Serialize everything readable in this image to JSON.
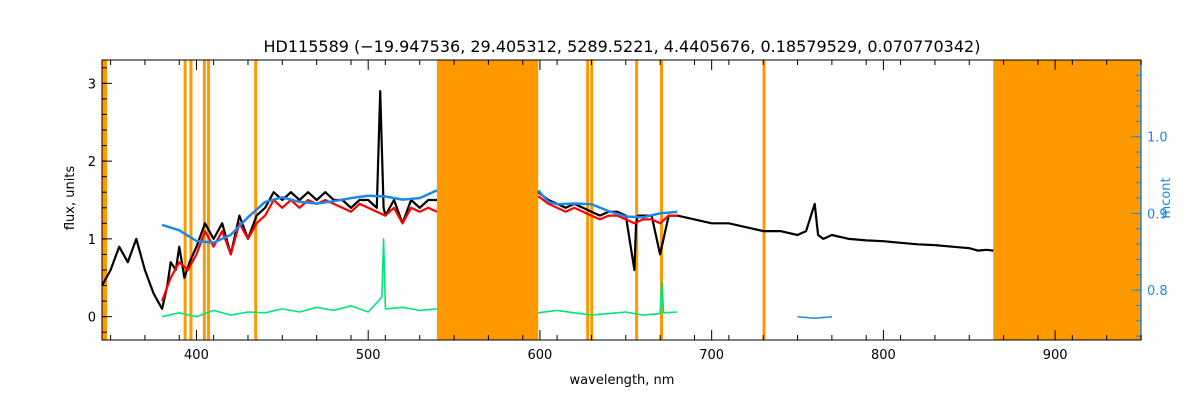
{
  "chart_data": {
    "type": "line",
    "title": "HD115589   (−19.947536, 29.405312, 5289.5221, 4.4405676, 0.18579529, 0.070770342)",
    "xlabel": "wavelength, nm",
    "ylabel": "flux, units",
    "y2label": "mcont",
    "xlim": [
      345,
      950
    ],
    "ylim": [
      -0.3,
      3.3
    ],
    "y2lim": [
      0.735,
      1.1
    ],
    "xticks": [
      400,
      500,
      600,
      700,
      800,
      900
    ],
    "yticks": [
      0,
      1,
      2,
      3
    ],
    "y2ticks": [
      0.8,
      0.9,
      1.0
    ],
    "y2ticklabels": [
      "0.8",
      "0.9",
      "1.0"
    ],
    "grid": false,
    "colors": {
      "observed": "#000000",
      "model": "#ff0000",
      "residual": "#00e676",
      "continuum": "#1e88e5",
      "mask": "#ff9900"
    },
    "masked_bands": [
      [
        345,
        348
      ],
      [
        540,
        599
      ],
      [
        864,
        950
      ]
    ],
    "masked_lines": [
      393.4,
      396.8,
      404.6,
      407.0,
      434.5,
      627.8,
      630.2,
      656.3,
      670.8,
      730.5
    ],
    "series": [
      {
        "key": "observed",
        "x": [
          345,
          350,
          355,
          360,
          365,
          370,
          375,
          380,
          383,
          385,
          388,
          390,
          393,
          396,
          400,
          405,
          410,
          415,
          420,
          425,
          430,
          435,
          440,
          445,
          450,
          455,
          460,
          465,
          470,
          475,
          480,
          485,
          490,
          495,
          500,
          505,
          507,
          509,
          510,
          515,
          520,
          525,
          530,
          535,
          540,
          599,
          605,
          610,
          615,
          620,
          625,
          630,
          635,
          640,
          645,
          650,
          655,
          656,
          657,
          660,
          665,
          670,
          675,
          680,
          690,
          700,
          710,
          720,
          730,
          740,
          750,
          755,
          760,
          762,
          765,
          770,
          780,
          790,
          800,
          810,
          820,
          830,
          840,
          850,
          855,
          860,
          864
        ],
        "y": [
          0.4,
          0.6,
          0.9,
          0.7,
          1.0,
          0.6,
          0.3,
          0.1,
          0.4,
          0.7,
          0.6,
          0.9,
          0.5,
          0.7,
          0.9,
          1.2,
          1.0,
          1.2,
          0.8,
          1.3,
          1.0,
          1.3,
          1.4,
          1.6,
          1.5,
          1.6,
          1.5,
          1.6,
          1.5,
          1.6,
          1.5,
          1.5,
          1.4,
          1.5,
          1.5,
          1.4,
          2.9,
          1.4,
          1.3,
          1.5,
          1.2,
          1.5,
          1.4,
          1.5,
          1.5,
          1.6,
          1.5,
          1.45,
          1.4,
          1.45,
          1.4,
          1.35,
          1.3,
          1.35,
          1.35,
          1.3,
          0.6,
          1.2,
          1.3,
          1.3,
          1.3,
          0.8,
          1.3,
          1.3,
          1.25,
          1.2,
          1.2,
          1.15,
          1.1,
          1.1,
          1.05,
          1.1,
          1.45,
          1.05,
          1.0,
          1.05,
          1.0,
          0.98,
          0.97,
          0.95,
          0.93,
          0.92,
          0.9,
          0.88,
          0.85,
          0.86,
          0.85
        ]
      },
      {
        "key": "model",
        "x": [
          380,
          385,
          390,
          395,
          400,
          405,
          410,
          415,
          420,
          425,
          430,
          435,
          440,
          445,
          450,
          455,
          460,
          465,
          470,
          475,
          480,
          485,
          490,
          495,
          500,
          505,
          510,
          515,
          520,
          525,
          530,
          535,
          540,
          599,
          605,
          610,
          615,
          620,
          625,
          630,
          635,
          640,
          645,
          650,
          655,
          660,
          665,
          670,
          675,
          680
        ],
        "y": [
          0.2,
          0.5,
          0.7,
          0.6,
          0.8,
          1.1,
          0.9,
          1.1,
          0.8,
          1.2,
          1.0,
          1.2,
          1.3,
          1.5,
          1.4,
          1.5,
          1.4,
          1.5,
          1.45,
          1.5,
          1.45,
          1.4,
          1.35,
          1.45,
          1.4,
          1.35,
          1.3,
          1.4,
          1.2,
          1.4,
          1.35,
          1.4,
          1.35,
          1.55,
          1.45,
          1.4,
          1.35,
          1.4,
          1.35,
          1.3,
          1.25,
          1.3,
          1.3,
          1.25,
          1.2,
          1.25,
          1.25,
          1.2,
          1.3,
          1.3
        ]
      },
      {
        "key": "residual",
        "x": [
          380,
          390,
          400,
          410,
          420,
          430,
          440,
          450,
          460,
          470,
          480,
          490,
          500,
          508,
          509,
          510,
          520,
          530,
          540,
          599,
          610,
          620,
          630,
          640,
          650,
          660,
          670,
          671,
          672,
          680
        ],
        "y": [
          0.0,
          0.05,
          0.0,
          0.08,
          0.02,
          0.06,
          0.05,
          0.1,
          0.06,
          0.12,
          0.08,
          0.14,
          0.06,
          0.25,
          1.0,
          0.1,
          0.12,
          0.08,
          0.1,
          0.05,
          0.08,
          0.05,
          0.02,
          0.04,
          0.06,
          0.02,
          0.04,
          0.45,
          0.05,
          0.06
        ]
      },
      {
        "key": "continuum_low",
        "x": [
          345,
          400,
          500,
          600,
          700,
          750,
          760,
          770,
          800,
          864
        ],
        "y": [
          0.02,
          0.01,
          0.0,
          0.0,
          0.0,
          0.0,
          -0.02,
          0.0,
          0.0,
          0.0
        ]
      },
      {
        "key": "continuum",
        "x": [
          380,
          390,
          400,
          410,
          420,
          430,
          440,
          450,
          460,
          470,
          480,
          490,
          500,
          510,
          520,
          530,
          540,
          599,
          605,
          610,
          620,
          630,
          640,
          650,
          660,
          670,
          680
        ],
        "y2": [
          0.885,
          0.878,
          0.864,
          0.862,
          0.872,
          0.895,
          0.915,
          0.921,
          0.915,
          0.913,
          0.916,
          0.92,
          0.923,
          0.922,
          0.918,
          0.92,
          0.93,
          0.93,
          0.915,
          0.912,
          0.913,
          0.912,
          0.903,
          0.896,
          0.895,
          0.9,
          0.902
        ]
      }
    ]
  }
}
